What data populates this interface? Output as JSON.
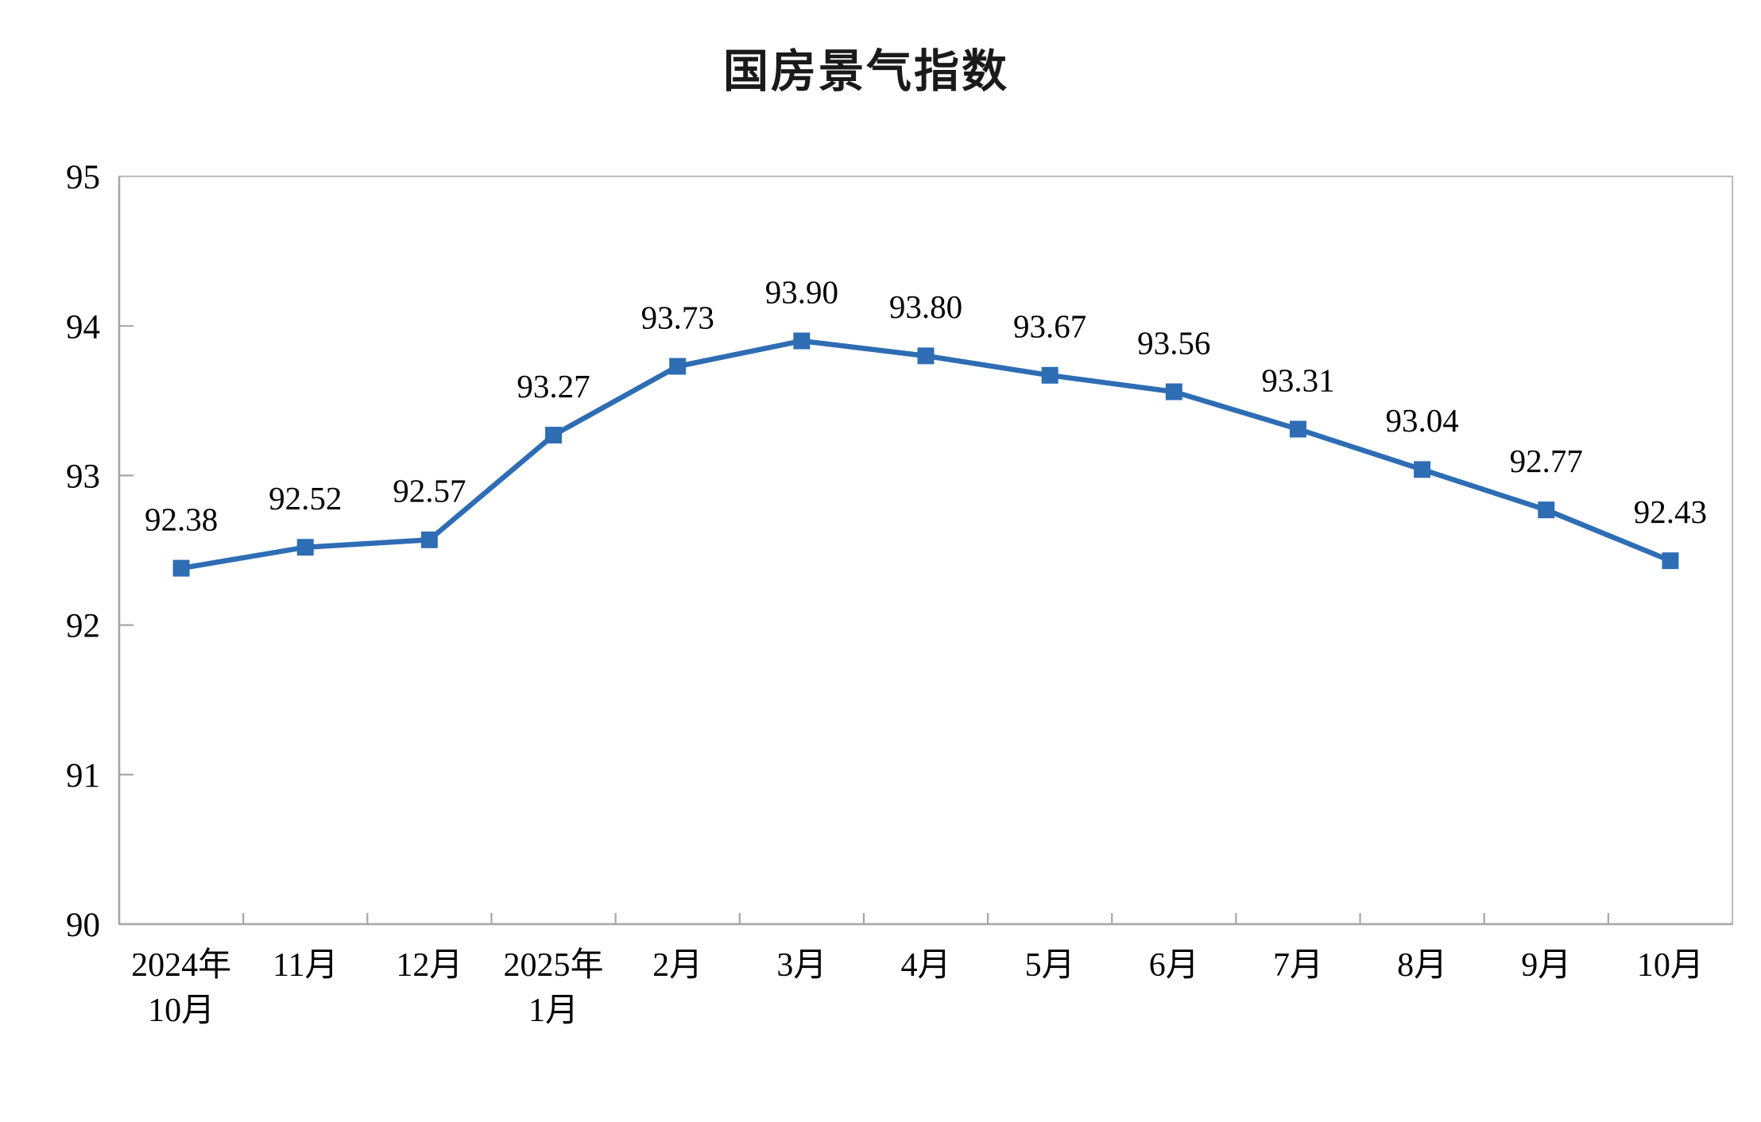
{
  "chart_data": {
    "type": "line",
    "title": "国房景气指数",
    "categories": [
      "2024年\n10月",
      "11月",
      "12月",
      "2025年\n1月",
      "2月",
      "3月",
      "4月",
      "5月",
      "6月",
      "7月",
      "8月",
      "9月",
      "10月"
    ],
    "values": [
      92.38,
      92.52,
      92.57,
      93.27,
      93.73,
      93.9,
      93.8,
      93.67,
      93.56,
      93.31,
      93.04,
      92.77,
      92.43
    ],
    "data_labels": [
      "92.38",
      "92.52",
      "92.57",
      "93.27",
      "93.73",
      "93.90",
      "93.80",
      "93.67",
      "93.56",
      "93.31",
      "93.04",
      "92.77",
      "92.43"
    ],
    "xlabel": "",
    "ylabel": "",
    "ylim": [
      90,
      95
    ],
    "yticks": [
      90,
      91,
      92,
      93,
      94,
      95
    ],
    "ytick_labels": [
      "90",
      "91",
      "92",
      "93",
      "94",
      "95"
    ],
    "grid": false,
    "legend": "none",
    "marker": "square",
    "colors": {
      "line": "#2E6DB4",
      "marker": "#2E6DB4",
      "axis": "#A6A6A6",
      "plot_border": "#BFBFBF",
      "text": "#000000"
    }
  }
}
